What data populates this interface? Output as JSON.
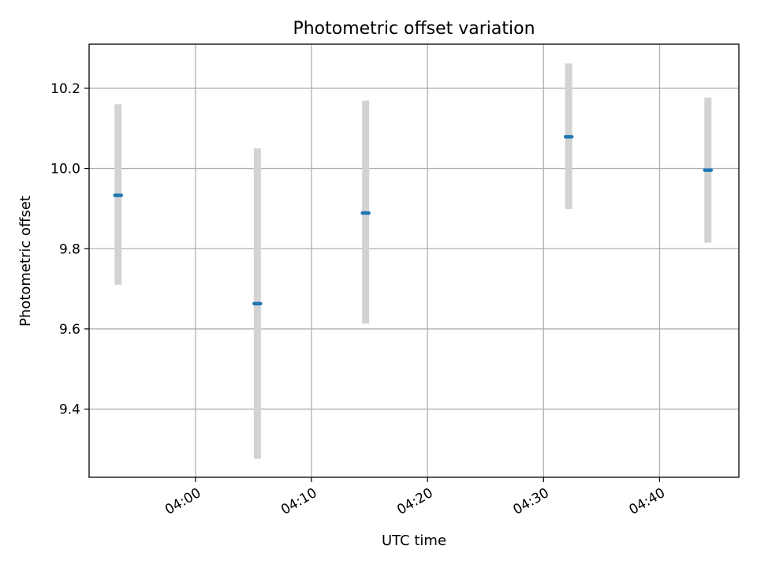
{
  "chart_data": {
    "type": "scatter",
    "title": "Photometric offset variation",
    "xlabel": "UTC time",
    "ylabel": "Photometric offset",
    "x_ticks": [
      "04:00",
      "04:10",
      "04:20",
      "04:30",
      "04:40"
    ],
    "y_ticks": [
      "9.4",
      "9.6",
      "9.8",
      "10.0",
      "10.2"
    ],
    "xlim": [
      "03:50:50",
      "04:46:50"
    ],
    "ylim": [
      9.23,
      10.31
    ],
    "grid": true,
    "points": [
      {
        "x": "03:53:20",
        "y": 9.933,
        "err_low": 9.71,
        "err_high": 10.16
      },
      {
        "x": "04:05:20",
        "y": 9.663,
        "err_low": 9.276,
        "err_high": 10.05
      },
      {
        "x": "04:14:40",
        "y": 9.889,
        "err_low": 9.613,
        "err_high": 10.169
      },
      {
        "x": "04:32:10",
        "y": 10.079,
        "err_low": 9.899,
        "err_high": 10.262
      },
      {
        "x": "04:44:10",
        "y": 9.996,
        "err_low": 9.815,
        "err_high": 10.177
      }
    ],
    "marker_color": "#1f77b4",
    "errorbar_color": "#d3d3d3"
  }
}
